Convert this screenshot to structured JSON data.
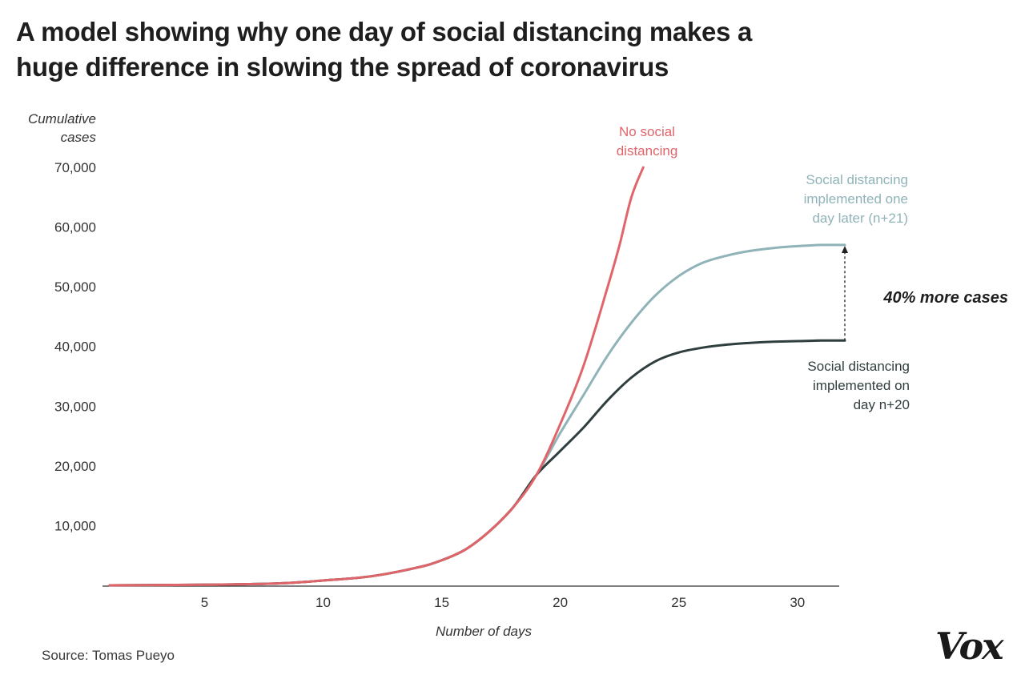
{
  "title": {
    "line1": "A model showing why one day of social distancing makes a",
    "line2": "huge difference in slowing the spread of coronavirus"
  },
  "source": "Source: Tomas Pueyo",
  "logo": "Vox",
  "colors": {
    "no_distancing": "#e0656a",
    "one_day_later": "#8fb3b8",
    "on_day_20": "#2f3e3e",
    "axis": "#333333"
  },
  "chart_data": {
    "type": "line",
    "ylabel_line1": "Cumulative",
    "ylabel_line2": "cases",
    "xlabel": "Number of days",
    "xlim": [
      1,
      32
    ],
    "ylim": [
      0,
      72000
    ],
    "x_ticks": [
      5,
      10,
      15,
      20,
      25,
      30
    ],
    "x_tick_labels": [
      "5",
      "10",
      "15",
      "20",
      "25",
      "30"
    ],
    "y_ticks": [
      10000,
      20000,
      30000,
      40000,
      50000,
      60000,
      70000
    ],
    "y_tick_labels": [
      "10,000",
      "20,000",
      "30,000",
      "40,000",
      "50,000",
      "60,000",
      "70,000"
    ],
    "grid": false,
    "series": [
      {
        "key": "no_distancing",
        "label_lines": [
          "No social",
          "distancing"
        ],
        "x": [
          1,
          5,
          8,
          10,
          12,
          14,
          15,
          16,
          17,
          18,
          19,
          20,
          21,
          22,
          22.5,
          23,
          23.5
        ],
        "y": [
          0,
          100,
          300,
          800,
          1500,
          3000,
          4200,
          6000,
          9000,
          13000,
          18500,
          27000,
          37000,
          50000,
          57000,
          65000,
          70000
        ]
      },
      {
        "key": "one_day_later",
        "label_lines": [
          "Social distancing",
          "implemented one",
          "day later (n+21)"
        ],
        "x": [
          1,
          5,
          8,
          10,
          12,
          14,
          15,
          16,
          17,
          18,
          19,
          20,
          21,
          22,
          23,
          24,
          25,
          26,
          27,
          28,
          29,
          30,
          31,
          32
        ],
        "y": [
          0,
          100,
          300,
          800,
          1500,
          3000,
          4200,
          6000,
          9000,
          13000,
          18500,
          25500,
          32000,
          38500,
          44000,
          48500,
          51800,
          54000,
          55200,
          56000,
          56500,
          56800,
          57000,
          57000
        ]
      },
      {
        "key": "on_day_20",
        "label_lines": [
          "Social distancing",
          "implemented on",
          "day n+20"
        ],
        "x": [
          1,
          5,
          8,
          10,
          12,
          14,
          15,
          16,
          17,
          18,
          19,
          20,
          21,
          22,
          23,
          24,
          25,
          26,
          27,
          28,
          29,
          30,
          31,
          32
        ],
        "y": [
          0,
          100,
          300,
          800,
          1500,
          3000,
          4200,
          6000,
          9000,
          13000,
          18500,
          22500,
          26500,
          31000,
          34800,
          37500,
          39000,
          39800,
          40300,
          40600,
          40800,
          40900,
          41000,
          41000
        ]
      }
    ],
    "annotation": {
      "text": "40% more cases",
      "x": 32,
      "y_from": 41000,
      "y_to": 57000
    }
  }
}
